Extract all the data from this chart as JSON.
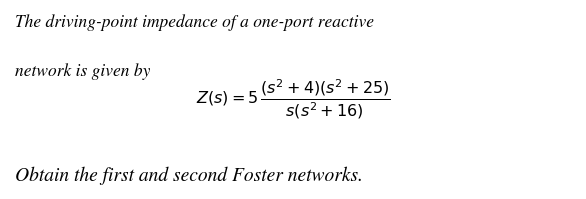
{
  "line1": "The driving-point impedance of a one-port reactive",
  "line2": "network is given by",
  "formula": "$Z(s) = 5\\,\\dfrac{(s^2 + 4)(s^2 + 25)}{s(s^2 + 16)}$",
  "last_line": "Obtain the first and second Foster networks.",
  "bg_color": "#ffffff",
  "text_color": "#000000",
  "font_size_body": 12.5,
  "font_size_formula": 11.5,
  "font_size_last": 14.0,
  "fig_width": 5.86,
  "fig_height": 1.99,
  "dpi": 100
}
